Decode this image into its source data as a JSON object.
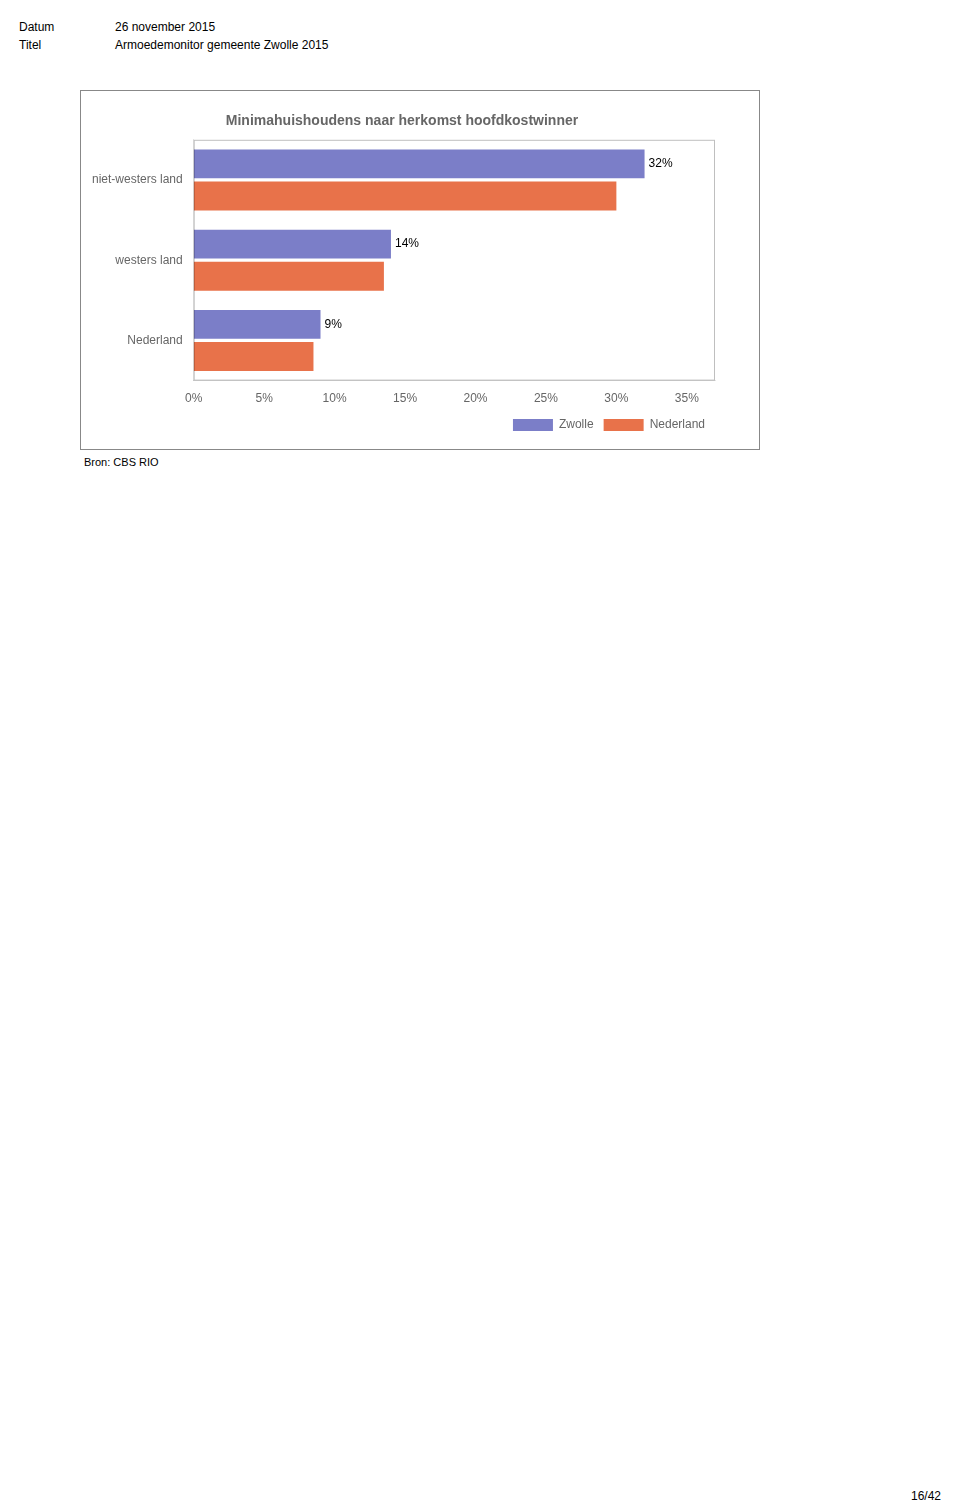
{
  "chart_data": {
    "type": "bar",
    "orientation": "horizontal",
    "title": "Minimahuishoudens naar herkomst hoofdkostwinner",
    "categories": [
      "niet-westers land",
      "westers land",
      "Nederland"
    ],
    "series": [
      {
        "name": "Zwolle",
        "color": "#7B7EC8",
        "values": [
          0.32,
          0.14,
          0.09
        ],
        "value_labels": [
          "32%",
          "14%",
          "9%"
        ]
      },
      {
        "name": "Nederland",
        "color": "#E8724A",
        "values": [
          0.3,
          0.135,
          0.085
        ]
      }
    ],
    "xlim": [
      0,
      0.37
    ],
    "xticks": [
      {
        "value": 0,
        "label": "0%"
      },
      {
        "value": 0.05,
        "label": "5%"
      },
      {
        "value": 0.1,
        "label": "10%"
      },
      {
        "value": 0.15,
        "label": "15%"
      },
      {
        "value": 0.2,
        "label": "20%"
      },
      {
        "value": 0.25,
        "label": "25%"
      },
      {
        "value": 0.3,
        "label": "30%"
      },
      {
        "value": 0.35,
        "label": "35%"
      }
    ],
    "grid": false,
    "legend": "lower right",
    "header": [
      {
        "label": "Datum",
        "value": "26 november 2015"
      },
      {
        "label": "Titel",
        "value": "Armoedemonitor gemeente Zwolle 2015"
      }
    ],
    "source": "Bron: CBS RIO",
    "page": "16/42"
  }
}
